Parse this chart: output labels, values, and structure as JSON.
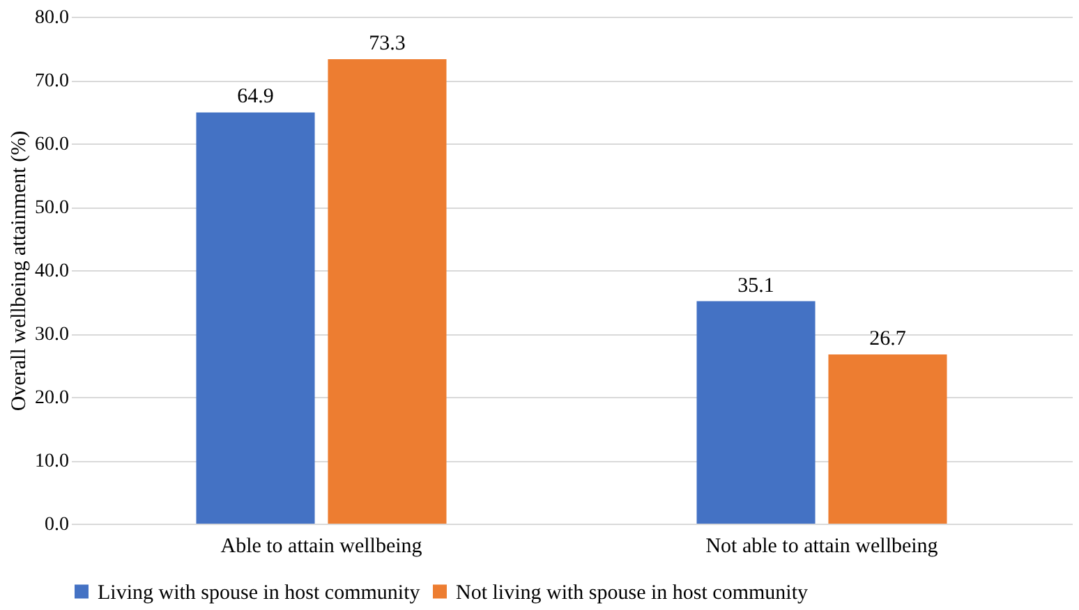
{
  "chart_data": {
    "type": "bar",
    "ylabel": "Overall wellbeing attainment (%)",
    "categories": [
      "Able to attain wellbeing",
      "Not able to attain wellbeing"
    ],
    "series": [
      {
        "name": "Living with spouse in host community",
        "color": "#4472c4",
        "values": [
          64.9,
          35.1
        ]
      },
      {
        "name": "Not living with spouse in host community",
        "color": "#ed7d31",
        "values": [
          73.3,
          26.7
        ]
      }
    ],
    "ylim": [
      0,
      80
    ],
    "yticks": [
      {
        "value": 0,
        "label": "0.0"
      },
      {
        "value": 10,
        "label": "10.0"
      },
      {
        "value": 20,
        "label": "20.0"
      },
      {
        "value": 30,
        "label": "30.0"
      },
      {
        "value": 40,
        "label": "40.0"
      },
      {
        "value": 50,
        "label": "50.0"
      },
      {
        "value": 60,
        "label": "60.0"
      },
      {
        "value": 70,
        "label": "70.0"
      },
      {
        "value": 80,
        "label": "80.0"
      }
    ],
    "grid": "y",
    "legend": "bottom",
    "data_labels": true
  }
}
